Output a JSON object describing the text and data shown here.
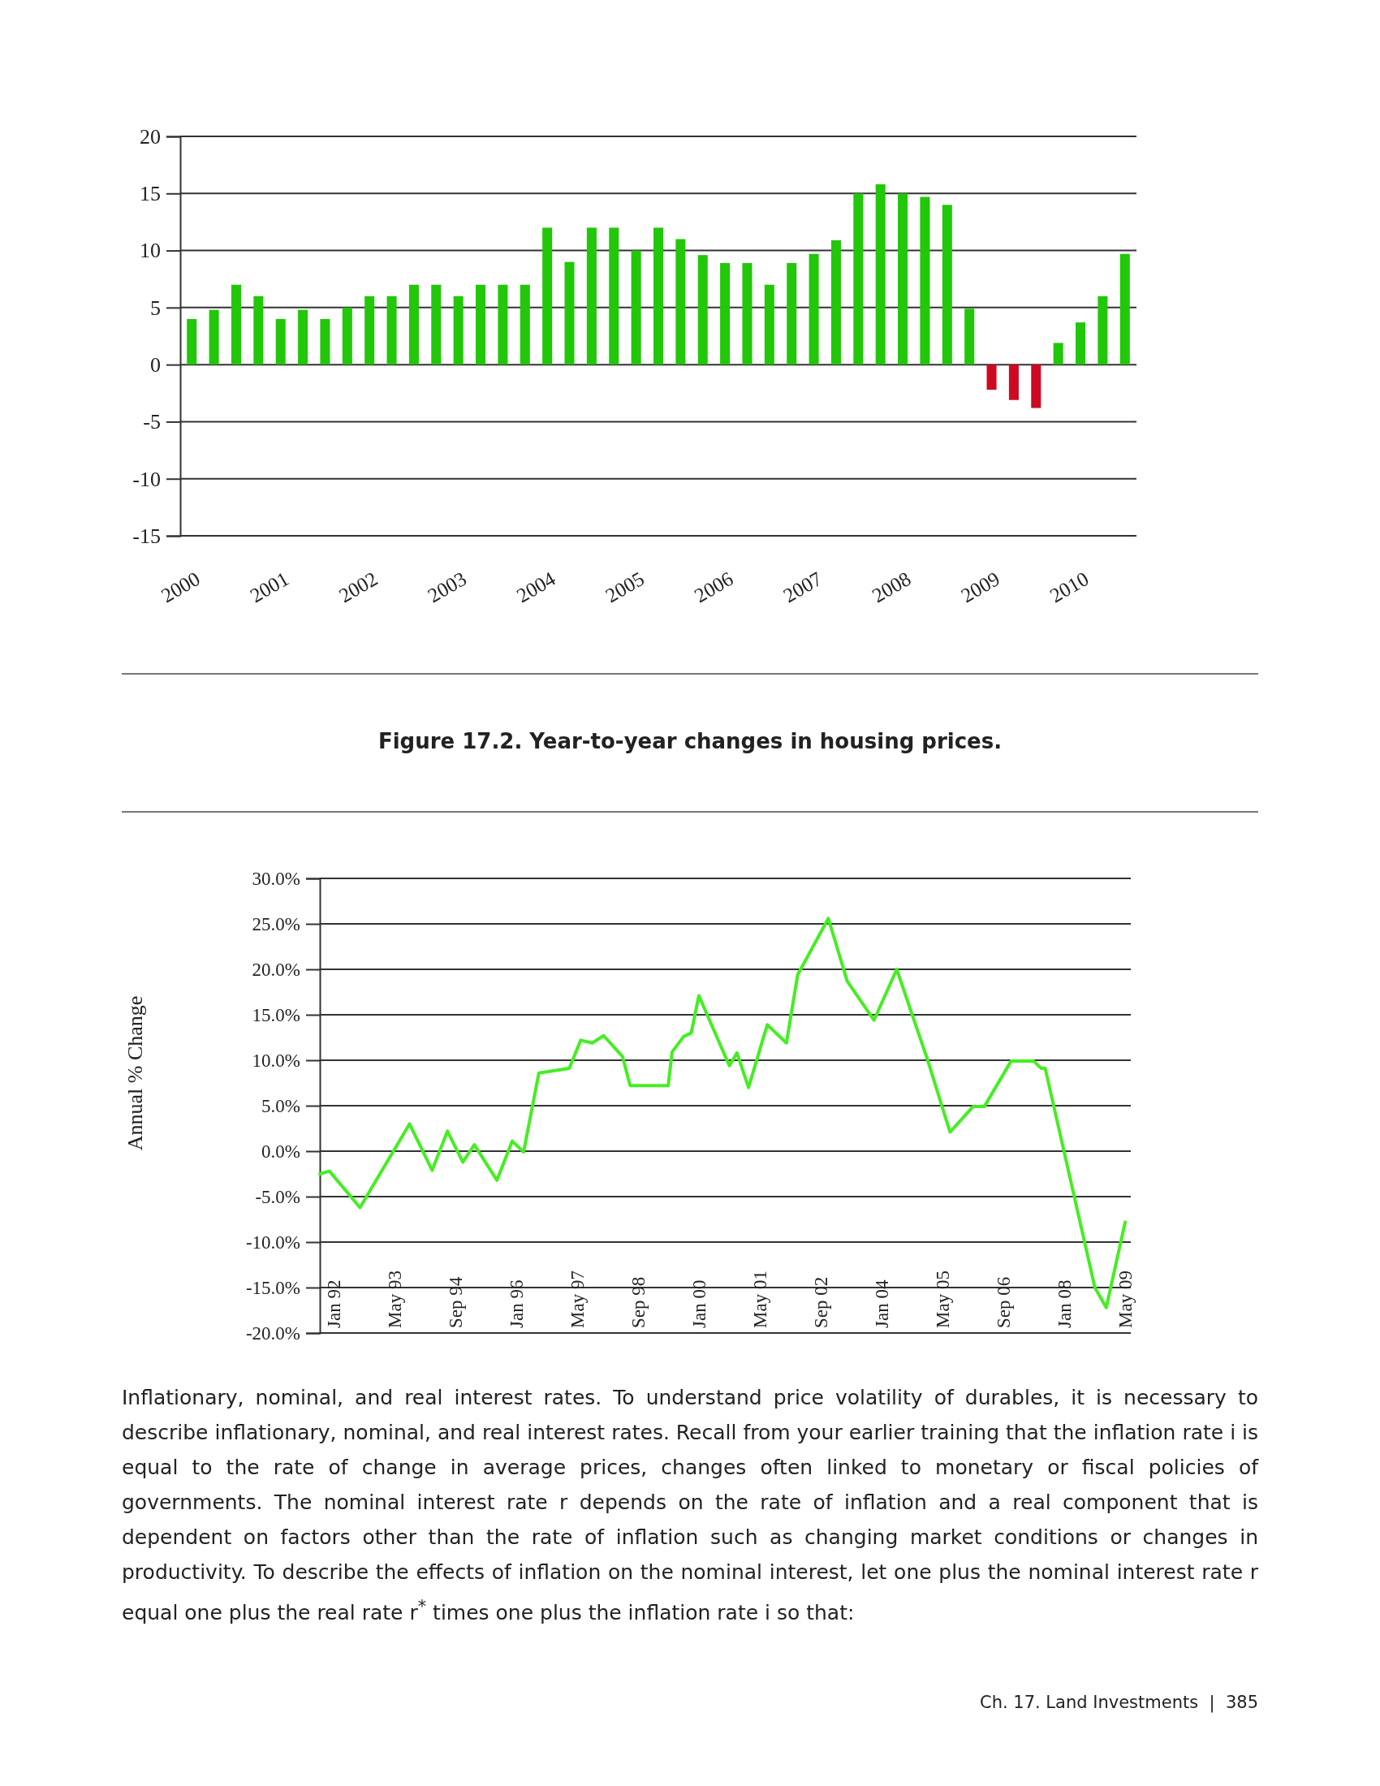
{
  "chart_data": [
    {
      "type": "bar",
      "categories": [
        "2000",
        null,
        null,
        null,
        "2001",
        null,
        null,
        null,
        "2002",
        null,
        null,
        null,
        "2003",
        null,
        null,
        null,
        "2004",
        null,
        null,
        null,
        "2005",
        null,
        null,
        null,
        "2006",
        null,
        null,
        null,
        "2007",
        null,
        null,
        null,
        "2008",
        null,
        null,
        null,
        "2009",
        null,
        null,
        null,
        "2010",
        null,
        null
      ],
      "values": [
        4,
        4.8,
        7,
        6,
        4,
        4.8,
        4,
        5,
        6,
        6,
        7,
        7,
        6,
        7,
        7,
        7,
        12,
        9,
        12,
        12,
        10,
        12,
        11,
        9.6,
        8.9,
        8.9,
        7,
        8.9,
        9.7,
        10.9,
        15,
        15.8,
        15,
        14.7,
        14,
        4.9,
        -2.2,
        -3.1,
        -3.8,
        1.9,
        3.7,
        6,
        9.7
      ],
      "colors": [
        "#22c70a",
        "#22c70a",
        "#22c70a",
        "#22c70a",
        "#22c70a",
        "#22c70a",
        "#22c70a",
        "#22c70a",
        "#22c70a",
        "#22c70a",
        "#22c70a",
        "#22c70a",
        "#22c70a",
        "#22c70a",
        "#22c70a",
        "#22c70a",
        "#22c70a",
        "#22c70a",
        "#22c70a",
        "#22c70a",
        "#22c70a",
        "#22c70a",
        "#22c70a",
        "#22c70a",
        "#22c70a",
        "#22c70a",
        "#22c70a",
        "#22c70a",
        "#22c70a",
        "#22c70a",
        "#22c70a",
        "#22c70a",
        "#22c70a",
        "#22c70a",
        "#22c70a",
        "#22c70a",
        "#cc0a22",
        "#cc0a22",
        "#cc0a22",
        "#22c70a",
        "#22c70a",
        "#22c70a",
        "#22c70a"
      ],
      "ylim": [
        -15,
        20
      ],
      "yticks": [
        -15,
        -10,
        -5,
        0,
        5,
        10,
        15,
        20
      ],
      "grid": "y",
      "annotations": [
        "Figure 17.2. Year-to-year changes in housing prices."
      ]
    },
    {
      "type": "line",
      "ylabel": "Annual % Change",
      "x": [
        "1991-09-15",
        "1991-12",
        "1992-08",
        "1993-09",
        "1994-03",
        "1994-07",
        "1994-11",
        "1995-02",
        "1995-08",
        "1995-12",
        "1996-03",
        "1996-07",
        "1997-03",
        "1997-06",
        "1997-09",
        "1997-12",
        "1998-05",
        "1998-07",
        "1999-05",
        "1999-06",
        "1999-09",
        "1999-11",
        "2000-01",
        "2000-09",
        "2000-11",
        "2001-02",
        "2001-07",
        "2001-12",
        "2002-03",
        "2002-11",
        "2003-04",
        "2003-11",
        "2004-05",
        "2005-01",
        "2005-07",
        "2006-01",
        "2006-04",
        "2006-11",
        "2007-05",
        "2007-07",
        "2007-08",
        "2008-09",
        "2008-12",
        "2009-05"
      ],
      "series": [
        {
          "color": "#44ee22",
          "values": [
            -2.5,
            -2.2,
            -6.2,
            3,
            -2.1,
            2.2,
            -1.2,
            0.7,
            -3.2,
            1.1,
            -0.1,
            8.6,
            9.1,
            12.2,
            11.9,
            12.7,
            10.4,
            7.2,
            7.2,
            10.9,
            12.6,
            13,
            17.1,
            9.4,
            10.8,
            7,
            13.9,
            11.9,
            19.4,
            25.6,
            18.7,
            14.4,
            20,
            10.1,
            2.1,
            4.9,
            4.9,
            9.9,
            9.9,
            9.1,
            9.1,
            -15,
            -17.2,
            -7.8
          ]
        }
      ],
      "xlim": [
        "1991-09-15",
        "2009-06-15"
      ],
      "xticks": [
        {
          "value": "1992-01",
          "label": "Jan 92"
        },
        {
          "value": "1993-05",
          "label": "May 93"
        },
        {
          "value": "1994-09",
          "label": "Sep 94"
        },
        {
          "value": "1996-01",
          "label": "Jan 96"
        },
        {
          "value": "1997-05",
          "label": "May 97"
        },
        {
          "value": "1998-09",
          "label": "Sep 98"
        },
        {
          "value": "2000-01",
          "label": "Jan 00"
        },
        {
          "value": "2001-05",
          "label": "May 01"
        },
        {
          "value": "2002-09",
          "label": "Sep 02"
        },
        {
          "value": "2004-01",
          "label": "Jan 04"
        },
        {
          "value": "2005-05",
          "label": "May 05"
        },
        {
          "value": "2006-09",
          "label": "Sep 06"
        },
        {
          "value": "2008-01",
          "label": "Jan 08"
        },
        {
          "value": "2009-05",
          "label": "May 09"
        }
      ],
      "ylim": [
        -20,
        30
      ],
      "yticks": [
        {
          "value": -20,
          "label": "-20.0%"
        },
        {
          "value": -15,
          "label": "-15.0%"
        },
        {
          "value": -10,
          "label": "-10.0%"
        },
        {
          "value": -5,
          "label": "-5.0%"
        },
        {
          "value": 0,
          "label": "0.0%"
        },
        {
          "value": 5,
          "label": "5.0%"
        },
        {
          "value": 10,
          "label": "10.0%"
        },
        {
          "value": 15,
          "label": "15.0%"
        },
        {
          "value": 20,
          "label": "20.0%"
        },
        {
          "value": 25,
          "label": "25.0%"
        },
        {
          "value": 30,
          "label": "30.0%"
        }
      ],
      "grid": "y",
      "marker": "none",
      "line_style": "solid",
      "annotations": [
        "Inflationary, nominal, and real interest rates. To understand price volatility of durables, it is necessary to describe inflationary, nominal, and real interest rates. Recall from your earlier training that the inflation rate i is equal to the rate of change in average prices, changes often linked to monetary or fiscal policies of governments. The nominal interest rate r depends on the rate of inflation and a real component that is dependent on factors other than the rate of inflation such as changing market conditions or changes in productivity. To describe the effects of inflation on the nominal interest, let one plus the nominal interest rate r equal one plus the real rate r$^{*}$ times one plus the inflation rate i so that:",
        "Ch. 17. Land Investments  |  385"
      ]
    }
  ]
}
